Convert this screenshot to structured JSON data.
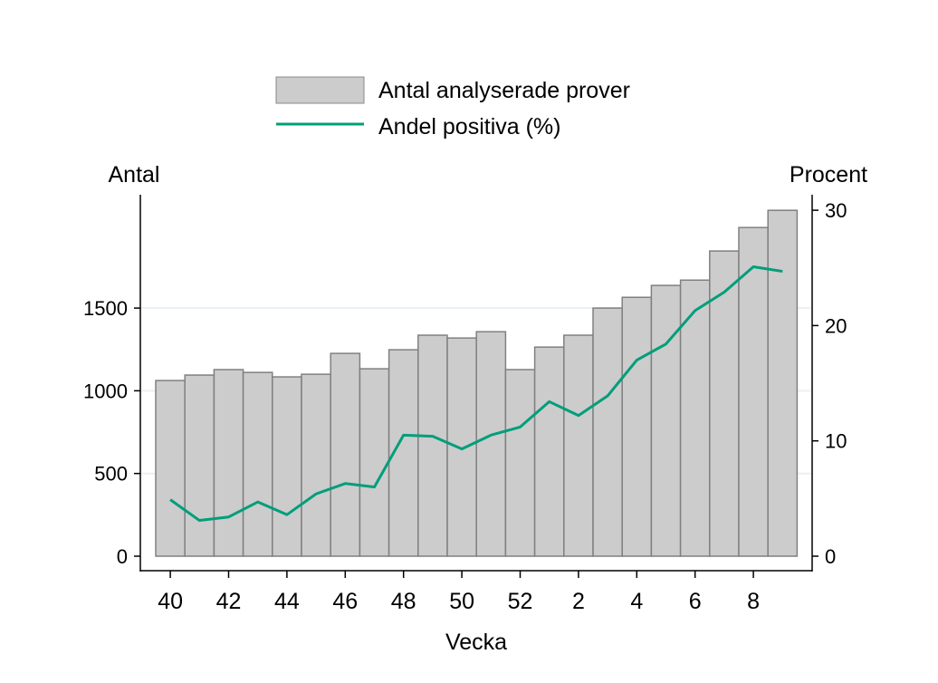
{
  "chart_data": {
    "type": "bar+line",
    "xlabel": "Vecka",
    "ylabel_left": "Antal",
    "ylabel_right": "Procent",
    "categories": [
      "40",
      "41",
      "42",
      "43",
      "44",
      "45",
      "46",
      "47",
      "48",
      "49",
      "50",
      "51",
      "52",
      "1",
      "2",
      "3",
      "4",
      "5",
      "6",
      "7",
      "8",
      "9"
    ],
    "x_tick_labels": [
      "40",
      "42",
      "44",
      "46",
      "48",
      "50",
      "52",
      "2",
      "4",
      "6",
      "8"
    ],
    "left_ticks": [
      0,
      500,
      1000,
      1500
    ],
    "right_ticks": [
      0,
      10,
      20,
      30
    ],
    "ylim_left": [
      0,
      2200
    ],
    "ylim_right": [
      0,
      30
    ],
    "grid": true,
    "legend_position": "top",
    "series": [
      {
        "name": "Antal analyserade prover",
        "type": "bar",
        "axis": "left",
        "color": "#cccccc",
        "values": [
          1062,
          1095,
          1128,
          1111,
          1084,
          1100,
          1226,
          1133,
          1248,
          1336,
          1319,
          1357,
          1128,
          1264,
          1336,
          1500,
          1565,
          1637,
          1669,
          1845,
          1987,
          2091
        ]
      },
      {
        "name": "Andel positiva (%)",
        "type": "line",
        "axis": "right",
        "color": "#009e7a",
        "values": [
          4.9,
          3.1,
          3.4,
          4.7,
          3.6,
          5.4,
          6.3,
          6.0,
          10.5,
          10.4,
          9.3,
          10.5,
          11.2,
          13.4,
          12.2,
          13.9,
          17.0,
          18.4,
          21.3,
          22.9,
          25.1,
          24.7
        ]
      }
    ]
  }
}
